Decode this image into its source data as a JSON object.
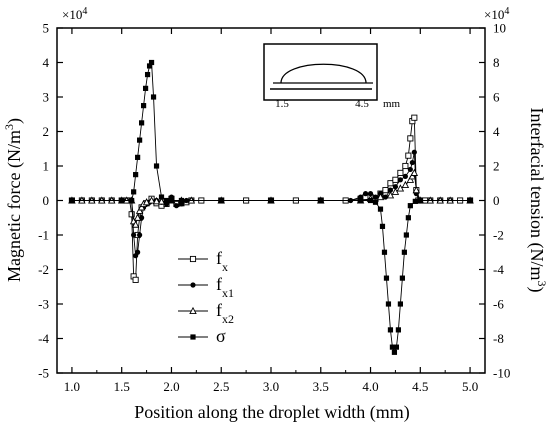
{
  "chart_data": {
    "type": "line",
    "xlabel": "Position along the droplet width (mm)",
    "ylabel_left": "Magnetic force (N/m",
    "ylabel_left_sup": "3",
    "ylabel_left_close": ")",
    "ylabel_right": "Interfacial tension (N/m",
    "ylabel_right_sup": "3",
    "ylabel_right_close": ")",
    "left_multiplier": "×10",
    "left_multiplier_exp": "4",
    "right_multiplier": "×10",
    "right_multiplier_exp": "4",
    "xlim": [
      0.85,
      5.15
    ],
    "ylim_left": [
      -5,
      5
    ],
    "ylim_right": [
      -10,
      10
    ],
    "x_ticks": [
      "1.0",
      "1.5",
      "2.0",
      "2.5",
      "3.0",
      "3.5",
      "4.0",
      "4.5",
      "5.0"
    ],
    "y_left_ticks": [
      "5",
      "4",
      "3",
      "2",
      "1",
      "0",
      "-1",
      "-2",
      "-3",
      "-4",
      "-5"
    ],
    "y_right_ticks": [
      "10",
      "8",
      "6",
      "4",
      "2",
      "0",
      "-2",
      "-4",
      "-6",
      "-8",
      "-10"
    ],
    "grid": false,
    "legend_position": "lower-left",
    "inset": {
      "tick_left": "1.5",
      "tick_right": "4.5",
      "unit": "mm"
    },
    "series": [
      {
        "name": "f",
        "sub": "x",
        "marker": "open-square",
        "axis": "left",
        "x": [
          1.0,
          1.1,
          1.2,
          1.3,
          1.4,
          1.5,
          1.55,
          1.58,
          1.6,
          1.62,
          1.64,
          1.66,
          1.68,
          1.7,
          1.75,
          1.8,
          1.85,
          1.9,
          1.95,
          2.0,
          2.05,
          2.1,
          2.15,
          2.2,
          2.3,
          2.5,
          2.75,
          3.0,
          3.25,
          3.5,
          3.75,
          3.9,
          3.95,
          4.0,
          4.05,
          4.1,
          4.15,
          4.2,
          4.25,
          4.3,
          4.35,
          4.38,
          4.4,
          4.42,
          4.44,
          4.46,
          4.48,
          4.5,
          4.55,
          4.6,
          4.7,
          4.8,
          4.9,
          5.0
        ],
        "y": [
          0,
          0,
          0,
          0,
          0,
          0,
          0,
          0,
          -0.4,
          -2.2,
          -2.3,
          -1.0,
          -0.5,
          -0.2,
          -0.08,
          0.05,
          -0.08,
          -0.15,
          -0.1,
          0.05,
          -0.1,
          -0.08,
          -0.05,
          0,
          0,
          0,
          0,
          0,
          0,
          0,
          0,
          0.05,
          0.1,
          0.1,
          0.05,
          0.2,
          0.3,
          0.5,
          0.6,
          0.8,
          1.0,
          1.3,
          1.8,
          2.3,
          2.4,
          0.3,
          0,
          0,
          0,
          0,
          0,
          0,
          0,
          0
        ]
      },
      {
        "name": "f",
        "sub": "x1",
        "marker": "filled-circle",
        "axis": "left",
        "x": [
          1.0,
          1.1,
          1.2,
          1.3,
          1.4,
          1.5,
          1.55,
          1.6,
          1.62,
          1.64,
          1.66,
          1.68,
          1.7,
          1.72,
          1.75,
          1.78,
          1.8,
          1.85,
          1.9,
          1.95,
          2.0,
          2.05,
          2.1,
          2.15,
          2.2,
          2.5,
          3.0,
          3.5,
          3.8,
          3.9,
          3.95,
          4.0,
          4.05,
          4.1,
          4.15,
          4.2,
          4.25,
          4.3,
          4.35,
          4.4,
          4.42,
          4.44,
          4.46,
          4.5,
          4.6,
          4.7,
          4.8,
          5.0
        ],
        "y": [
          0,
          0,
          0,
          0,
          0,
          0,
          0,
          0,
          -1.0,
          -1.6,
          -1.5,
          -1.0,
          -0.5,
          -0.2,
          -0.1,
          -0.05,
          -0.02,
          0,
          -0.05,
          -0.1,
          0.1,
          -0.15,
          -0.1,
          0,
          0,
          0,
          0,
          0,
          0,
          0.1,
          0.2,
          0.2,
          0.1,
          0.2,
          0.1,
          0.3,
          0.4,
          0.6,
          0.7,
          0.9,
          1.1,
          1.4,
          0.2,
          0,
          0,
          0,
          0,
          0
        ]
      },
      {
        "name": "f",
        "sub": "x2",
        "marker": "open-triangle",
        "axis": "left",
        "x": [
          1.0,
          1.1,
          1.2,
          1.3,
          1.4,
          1.5,
          1.55,
          1.6,
          1.62,
          1.64,
          1.66,
          1.68,
          1.7,
          1.72,
          1.75,
          1.8,
          1.85,
          1.9,
          2.0,
          2.1,
          2.2,
          2.5,
          3.0,
          3.5,
          3.9,
          4.0,
          4.1,
          4.2,
          4.25,
          4.3,
          4.35,
          4.4,
          4.42,
          4.44,
          4.46,
          4.5,
          4.6,
          4.7,
          4.8,
          5.0
        ],
        "y": [
          0,
          0,
          0,
          0,
          0,
          0,
          0,
          0,
          -0.6,
          -0.7,
          -0.5,
          -0.3,
          -0.2,
          -0.1,
          -0.05,
          0,
          -0.02,
          -0.03,
          0,
          0,
          0,
          0,
          0,
          0,
          0,
          0.05,
          0.1,
          0.15,
          0.25,
          0.35,
          0.45,
          0.6,
          0.7,
          0.8,
          0.3,
          0,
          0,
          0,
          0,
          0
        ]
      },
      {
        "name": "σ",
        "sub": "",
        "marker": "filled-square",
        "axis": "right",
        "x": [
          1.0,
          1.5,
          1.6,
          1.62,
          1.64,
          1.66,
          1.68,
          1.7,
          1.72,
          1.74,
          1.76,
          1.78,
          1.8,
          1.82,
          1.85,
          1.9,
          1.95,
          2.0,
          2.1,
          2.5,
          3.0,
          3.5,
          3.9,
          4.0,
          4.05,
          4.1,
          4.12,
          4.14,
          4.16,
          4.18,
          4.2,
          4.22,
          4.24,
          4.26,
          4.28,
          4.3,
          4.32,
          4.34,
          4.36,
          4.38,
          4.4,
          4.45,
          4.5,
          5.0
        ],
        "y": [
          0,
          0,
          0,
          0.5,
          1.5,
          2.5,
          3.5,
          4.5,
          5.5,
          6.5,
          7.3,
          7.8,
          8.0,
          6.0,
          2.0,
          0.2,
          0,
          0,
          0,
          0,
          0,
          0,
          0,
          0,
          -0.1,
          -0.5,
          -1.5,
          -3.0,
          -4.5,
          -6.0,
          -7.5,
          -8.5,
          -8.8,
          -8.5,
          -7.5,
          -6.0,
          -4.5,
          -3.0,
          -2.0,
          -1.0,
          -0.3,
          -0.05,
          0,
          0
        ]
      }
    ]
  }
}
